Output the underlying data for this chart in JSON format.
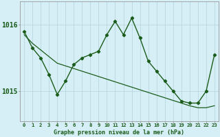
{
  "title": "Graphe pression niveau de la mer (hPa)",
  "bg_color": "#d6eef5",
  "grid_color": "#b8d8e0",
  "line_color": "#1a5c1a",
  "x_labels": [
    "0",
    "1",
    "2",
    "3",
    "4",
    "5",
    "6",
    "7",
    "8",
    "9",
    "10",
    "11",
    "12",
    "13",
    "14",
    "15",
    "16",
    "17",
    "18",
    "19",
    "20",
    "21",
    "22",
    "23"
  ],
  "hourly_data": [
    1015.9,
    1015.65,
    1015.5,
    1015.25,
    1014.95,
    1015.15,
    1015.4,
    1015.5,
    1015.55,
    1015.6,
    1015.85,
    1016.05,
    1015.85,
    1016.1,
    1015.8,
    1015.45,
    1015.3,
    1015.15,
    1015.0,
    1014.85,
    1014.82,
    1014.82,
    1015.0,
    1015.55
  ],
  "trend_data": [
    1015.85,
    1015.72,
    1015.62,
    1015.52,
    1015.42,
    1015.38,
    1015.34,
    1015.3,
    1015.26,
    1015.22,
    1015.18,
    1015.14,
    1015.1,
    1015.06,
    1015.02,
    1014.98,
    1014.94,
    1014.9,
    1014.86,
    1014.82,
    1014.78,
    1014.75,
    1014.75,
    1014.78
  ],
  "ylim": [
    1014.55,
    1016.35
  ],
  "ytick_positions": [
    1015.0,
    1016.0
  ],
  "ytick_labels": [
    "1015",
    "1016"
  ],
  "figsize": [
    3.2,
    2.0
  ],
  "dpi": 100
}
